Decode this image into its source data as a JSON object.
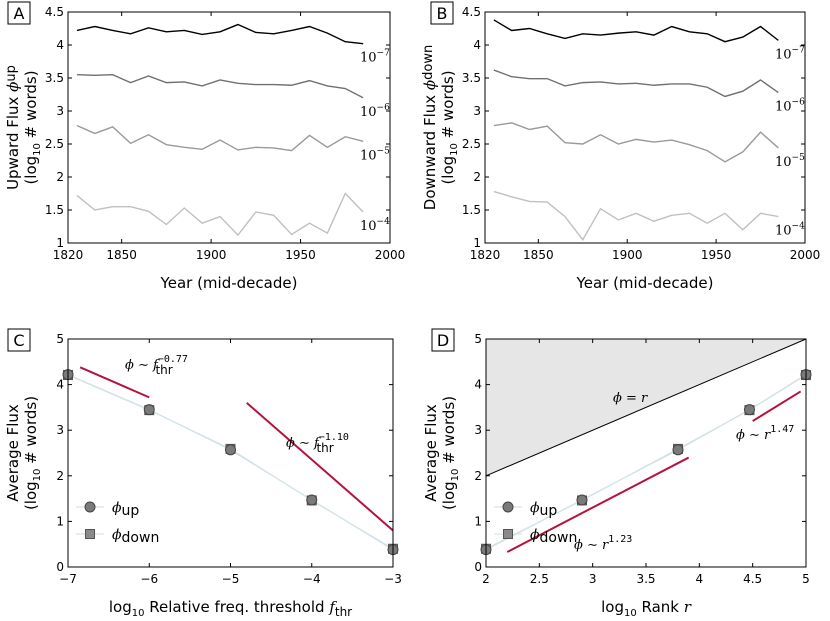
{
  "chart_data": [
    {
      "panel": "A",
      "type": "line",
      "xlabel": "Year (mid-decade)",
      "ylabel_line1": "Upward Flux ϕup",
      "ylabel_line2": "(log10 # words)",
      "xlim": [
        1820,
        2000
      ],
      "ylim": [
        1,
        4.5
      ],
      "xticks": [
        1820,
        1850,
        1900,
        1950,
        2000
      ],
      "yticks": [
        1,
        1.5,
        2,
        2.5,
        3,
        3.5,
        4,
        4.5
      ],
      "x": [
        1825,
        1835,
        1845,
        1855,
        1865,
        1875,
        1885,
        1895,
        1905,
        1915,
        1925,
        1935,
        1945,
        1955,
        1965,
        1975,
        1985
      ],
      "series": [
        {
          "name": "10^-7",
          "label_base": "10",
          "label_exp": "−7",
          "color": "#000000",
          "values": [
            4.22,
            4.28,
            4.22,
            4.17,
            4.26,
            4.2,
            4.22,
            4.16,
            4.2,
            4.31,
            4.19,
            4.17,
            4.22,
            4.28,
            4.18,
            4.05,
            4.02
          ]
        },
        {
          "name": "10^-6",
          "label_base": "10",
          "label_exp": "−6",
          "color": "#707070",
          "values": [
            3.55,
            3.54,
            3.55,
            3.43,
            3.53,
            3.43,
            3.44,
            3.38,
            3.47,
            3.42,
            3.4,
            3.4,
            3.39,
            3.46,
            3.38,
            3.34,
            3.2
          ]
        },
        {
          "name": "10^-5",
          "label_base": "10",
          "label_exp": "−5",
          "color": "#9a9a9a",
          "values": [
            2.78,
            2.66,
            2.76,
            2.51,
            2.64,
            2.49,
            2.45,
            2.42,
            2.56,
            2.41,
            2.45,
            2.44,
            2.4,
            2.63,
            2.45,
            2.61,
            2.54
          ]
        },
        {
          "name": "10^-4",
          "label_base": "10",
          "label_exp": "−4",
          "color": "#c0c0c0",
          "values": [
            1.72,
            1.5,
            1.55,
            1.55,
            1.48,
            1.28,
            1.53,
            1.3,
            1.4,
            1.12,
            1.47,
            1.42,
            1.13,
            1.3,
            1.15,
            1.75,
            1.47
          ]
        }
      ]
    },
    {
      "panel": "B",
      "type": "line",
      "xlabel": "Year (mid-decade)",
      "ylabel_line1": "Downward Flux ϕdown",
      "ylabel_line2": "(log10 # words)",
      "xlim": [
        1820,
        2000
      ],
      "ylim": [
        1,
        4.5
      ],
      "xticks": [
        1820,
        1850,
        1900,
        1950,
        2000
      ],
      "yticks": [
        1,
        1.5,
        2,
        2.5,
        3,
        3.5,
        4,
        4.5
      ],
      "x": [
        1825,
        1835,
        1845,
        1855,
        1865,
        1875,
        1885,
        1895,
        1905,
        1915,
        1925,
        1935,
        1945,
        1955,
        1965,
        1975,
        1985
      ],
      "series": [
        {
          "name": "10^-7",
          "label_base": "10",
          "label_exp": "−7",
          "color": "#000000",
          "values": [
            4.38,
            4.22,
            4.25,
            4.17,
            4.1,
            4.17,
            4.15,
            4.18,
            4.2,
            4.15,
            4.28,
            4.2,
            4.17,
            4.05,
            4.12,
            4.28,
            4.07
          ]
        },
        {
          "name": "10^-6",
          "label_base": "10",
          "label_exp": "−6",
          "color": "#707070",
          "values": [
            3.62,
            3.52,
            3.49,
            3.49,
            3.38,
            3.43,
            3.44,
            3.41,
            3.42,
            3.39,
            3.41,
            3.41,
            3.36,
            3.22,
            3.3,
            3.47,
            3.28
          ]
        },
        {
          "name": "10^-5",
          "label_base": "10",
          "label_exp": "−5",
          "color": "#9a9a9a",
          "values": [
            2.78,
            2.82,
            2.72,
            2.77,
            2.52,
            2.5,
            2.64,
            2.5,
            2.57,
            2.53,
            2.56,
            2.49,
            2.4,
            2.23,
            2.38,
            2.68,
            2.44
          ]
        },
        {
          "name": "10^-4",
          "label_base": "10",
          "label_exp": "−4",
          "color": "#c0c0c0",
          "values": [
            1.78,
            1.7,
            1.63,
            1.62,
            1.4,
            1.05,
            1.52,
            1.35,
            1.45,
            1.33,
            1.42,
            1.45,
            1.3,
            1.45,
            1.2,
            1.45,
            1.4
          ]
        }
      ]
    },
    {
      "panel": "C",
      "type": "scatter",
      "xlabel_prefix": "log",
      "xlabel_sub": "10",
      "xlabel_text": " Relative freq. threshold ",
      "xlabel_var": "f",
      "xlabel_var_sub": "thr",
      "ylabel_line1": "Average Flux",
      "ylabel_line2": "(log10 # words)",
      "xlim": [
        -7,
        -3
      ],
      "ylim": [
        0,
        5
      ],
      "xticks": [
        -7,
        -6,
        -5,
        -4,
        -3
      ],
      "ytick_labels": [
        "0",
        "1",
        "2",
        "3",
        "4",
        "5"
      ],
      "xtick_labels": [
        "−7",
        "−6",
        "−5",
        "−4",
        "−3"
      ],
      "x": [
        -7,
        -6,
        -5,
        -4,
        -3
      ],
      "series": [
        {
          "name": "ϕup",
          "marker": "circle",
          "values": [
            4.22,
            3.45,
            2.57,
            1.47,
            0.38
          ]
        },
        {
          "name": "ϕdown",
          "marker": "square",
          "values": [
            4.21,
            3.44,
            2.59,
            1.46,
            0.4
          ]
        }
      ],
      "fits": [
        {
          "x": [
            -6.85,
            -6.0
          ],
          "y": [
            4.38,
            3.72
          ],
          "color": "#b5123e"
        },
        {
          "x": [
            -4.8,
            -3.0
          ],
          "y": [
            3.6,
            0.8
          ],
          "color": "#b5123e"
        }
      ],
      "annotations": [
        {
          "phi": "ϕ",
          "sim": "∼",
          "var": "f",
          "sub": "thr",
          "exp": "−0.77"
        },
        {
          "phi": "ϕ",
          "sim": "∼",
          "var": "f",
          "sub": "thr",
          "exp": "−1.10"
        }
      ]
    },
    {
      "panel": "D",
      "type": "scatter",
      "xlabel_prefix": "log",
      "xlabel_sub": "10",
      "xlabel_text": " Rank ",
      "xlabel_var": "r",
      "ylabel_line1": "Average Flux",
      "ylabel_line2": "(log10 # words)",
      "xlim": [
        2,
        5
      ],
      "ylim": [
        0,
        5
      ],
      "xticks": [
        2,
        2.5,
        3,
        3.5,
        4,
        4.5,
        5
      ],
      "xtick_labels": [
        "2",
        "2.5",
        "3",
        "3.5",
        "4",
        "4.5",
        "5"
      ],
      "ytick_labels": [
        "0",
        "1",
        "2",
        "3",
        "4",
        "5"
      ],
      "x": [
        2.0,
        2.9,
        3.8,
        4.47,
        5.0
      ],
      "series": [
        {
          "name": "ϕup",
          "marker": "circle",
          "values": [
            0.38,
            1.47,
            2.57,
            3.45,
            4.22
          ]
        },
        {
          "name": "ϕdown",
          "marker": "square",
          "values": [
            0.4,
            1.46,
            2.59,
            3.44,
            4.21
          ]
        }
      ],
      "identity_line": {
        "x": [
          2,
          5
        ],
        "y": [
          2,
          5
        ]
      },
      "fits": [
        {
          "x": [
            2.2,
            3.9
          ],
          "y": [
            0.33,
            2.4
          ],
          "color": "#b5123e"
        },
        {
          "x": [
            4.5,
            4.95
          ],
          "y": [
            3.2,
            3.85
          ],
          "color": "#b5123e"
        }
      ],
      "annotations": [
        {
          "text": "ϕ = r"
        },
        {
          "phi": "ϕ",
          "sim": "∼",
          "var": "r",
          "exp": "1.47"
        },
        {
          "phi": "ϕ",
          "sim": "∼",
          "var": "r",
          "exp": "1.23"
        }
      ]
    }
  ]
}
